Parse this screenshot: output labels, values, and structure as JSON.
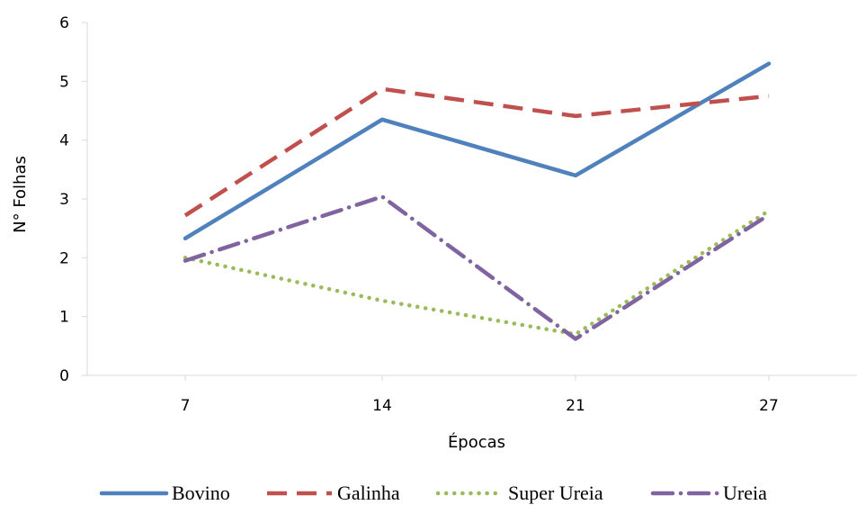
{
  "chart_data": {
    "type": "line",
    "title": "",
    "xlabel": "Épocas",
    "ylabel": "N° Folhas",
    "categories": [
      "7",
      "14",
      "21",
      "27"
    ],
    "ylim": [
      0,
      6
    ],
    "yticks": [
      "0",
      "1",
      "2",
      "3",
      "4",
      "5",
      "6"
    ],
    "grid": false,
    "legend_position": "bottom",
    "series": [
      {
        "name": "Bovino",
        "values": [
          2.33,
          4.35,
          3.4,
          5.3
        ],
        "color": "#4F81BD",
        "dash": "solid"
      },
      {
        "name": "Galinha",
        "values": [
          2.72,
          4.87,
          4.41,
          4.75
        ],
        "color": "#C0504D",
        "dash": "dashed"
      },
      {
        "name": "Super Ureia",
        "values": [
          2.0,
          1.27,
          0.7,
          2.8
        ],
        "color": "#9BBB59",
        "dash": "dotted"
      },
      {
        "name": "Ureia",
        "values": [
          1.95,
          3.04,
          0.62,
          2.73
        ],
        "color": "#8064A2",
        "dash": "dashdot"
      }
    ]
  }
}
